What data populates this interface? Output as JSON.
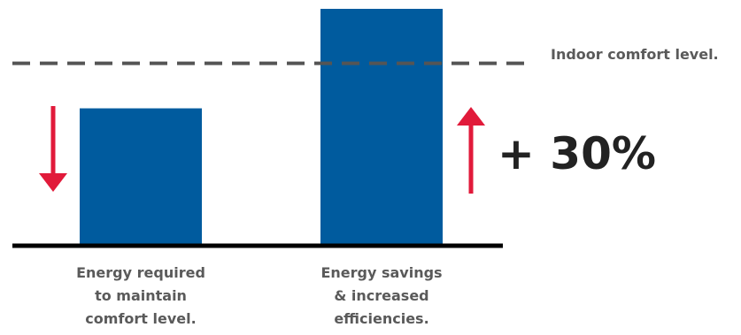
{
  "chart_data": {
    "type": "bar",
    "categories": [
      [
        "Energy required",
        "to maintain",
        "comfort level."
      ],
      [
        "Energy savings",
        "& increased",
        "efficiencies."
      ]
    ],
    "values": [
      58,
      100
    ],
    "reference_line": {
      "label": "Indoor comfort level.",
      "value": 77,
      "style": "dashed",
      "color": "#555555"
    },
    "annotation": "+ 30%",
    "arrows": [
      {
        "direction": "down",
        "next_to": "Energy required",
        "color": "#e11a3a"
      },
      {
        "direction": "up",
        "next_to": "Energy savings",
        "color": "#e11a3a"
      }
    ],
    "ylim": [
      0,
      100
    ],
    "grid": false,
    "legend": "none",
    "colors": {
      "bar": "#005b9e",
      "axis": "#000000",
      "arrow": "#e11a3a",
      "label": "#5a5a5a"
    }
  }
}
